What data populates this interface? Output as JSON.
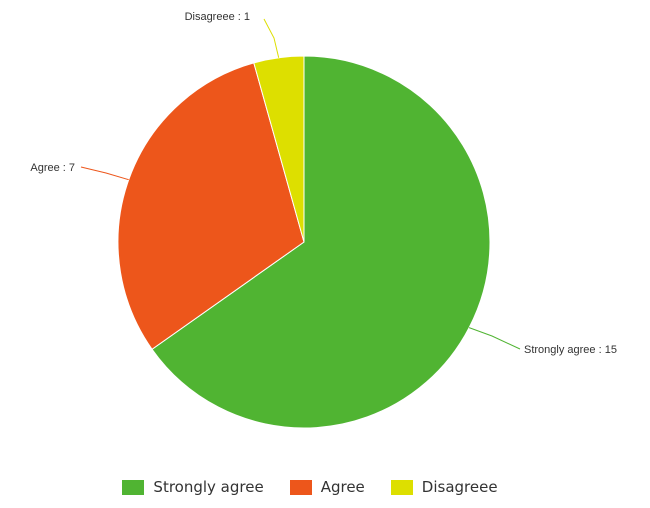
{
  "chart_data": {
    "type": "pie",
    "categories": [
      "Strongly agree",
      "Agree",
      "Disagreee"
    ],
    "values": [
      15,
      7,
      1
    ],
    "colors": [
      "#50b432",
      "#ed561b",
      "#dddf00"
    ],
    "slice_labels": [
      "Strongly agree : 15",
      "Agree : 7",
      "Disagreee : 1"
    ],
    "legend_position": "bottom",
    "start_angle": "12 o'clock",
    "direction": "clockwise"
  },
  "legend": {
    "items": [
      {
        "label": "Strongly agree",
        "color": "#50b432"
      },
      {
        "label": "Agree",
        "color": "#ed561b"
      },
      {
        "label": "Disagreee",
        "color": "#dddf00"
      }
    ]
  }
}
